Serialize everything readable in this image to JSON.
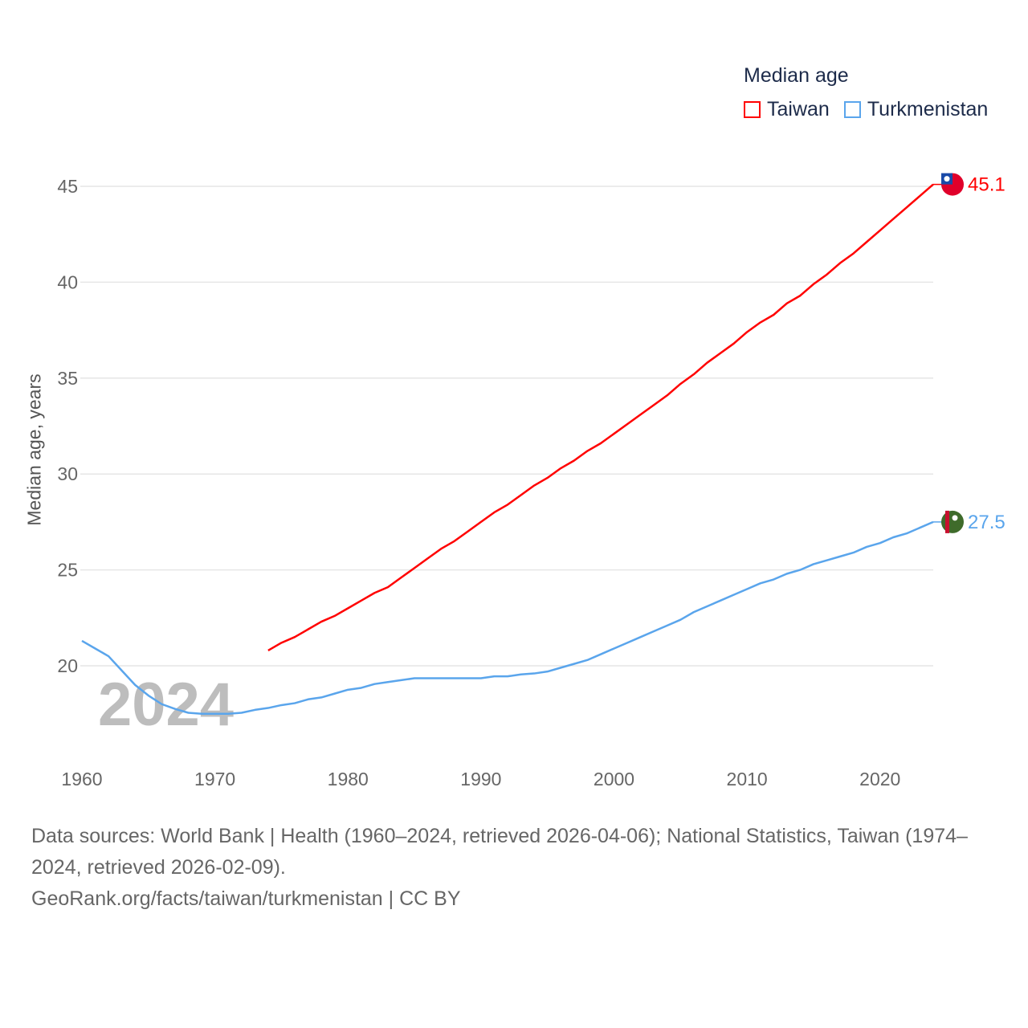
{
  "chart_data": {
    "type": "line",
    "legend_title": "Median age",
    "legend_placement": "top-right",
    "ylabel": "Median age, years",
    "xlabel": "",
    "year_watermark": "2024",
    "xlim": [
      1960,
      2024
    ],
    "ylim": [
      16.5,
      46
    ],
    "x_ticks": [
      1960,
      1970,
      1980,
      1990,
      2000,
      2010,
      2020
    ],
    "y_ticks": [
      20,
      25,
      30,
      35,
      40,
      45
    ],
    "grid": true,
    "series": [
      {
        "name": "Taiwan",
        "color": "#ff0000",
        "start_year": 1974,
        "end_label": "45.1",
        "flag": "taiwan-flag",
        "values": [
          20.8,
          21.2,
          21.5,
          21.9,
          22.3,
          22.6,
          23.0,
          23.4,
          23.8,
          24.1,
          24.6,
          25.1,
          25.6,
          26.1,
          26.5,
          27.0,
          27.5,
          28.0,
          28.4,
          28.9,
          29.4,
          29.8,
          30.3,
          30.7,
          31.2,
          31.6,
          32.1,
          32.6,
          33.1,
          33.6,
          34.1,
          34.7,
          35.2,
          35.8,
          36.3,
          36.8,
          37.4,
          37.9,
          38.3,
          38.9,
          39.3,
          39.9,
          40.4,
          41.0,
          41.5,
          42.1,
          42.7,
          43.3,
          43.9,
          44.5,
          45.1
        ]
      },
      {
        "name": "Turkmenistan",
        "color": "#5aa5ec",
        "start_year": 1960,
        "end_label": "27.5",
        "flag": "turkmenistan-flag",
        "values": [
          21.3,
          20.9,
          20.5,
          19.75,
          19.0,
          18.45,
          18.0,
          17.75,
          17.55,
          17.5,
          17.5,
          17.5,
          17.55,
          17.7,
          17.8,
          17.95,
          18.05,
          18.25,
          18.35,
          18.55,
          18.75,
          18.85,
          19.05,
          19.15,
          19.25,
          19.35,
          19.35,
          19.35,
          19.35,
          19.35,
          19.35,
          19.45,
          19.45,
          19.55,
          19.6,
          19.7,
          19.9,
          20.1,
          20.3,
          20.6,
          20.9,
          21.2,
          21.5,
          21.8,
          22.1,
          22.4,
          22.8,
          23.1,
          23.4,
          23.7,
          24.0,
          24.3,
          24.5,
          24.8,
          25.0,
          25.3,
          25.5,
          25.7,
          25.9,
          26.2,
          26.4,
          26.7,
          26.9,
          27.2,
          27.5
        ]
      }
    ]
  },
  "footer": {
    "sources": "Data sources: World Bank | Health (1960–2024, retrieved 2026-04-06); National Statistics, Taiwan (1974–2024, retrieved 2026-02-09).",
    "credit": "GeoRank.org/facts/taiwan/turkmenistan | CC BY"
  }
}
